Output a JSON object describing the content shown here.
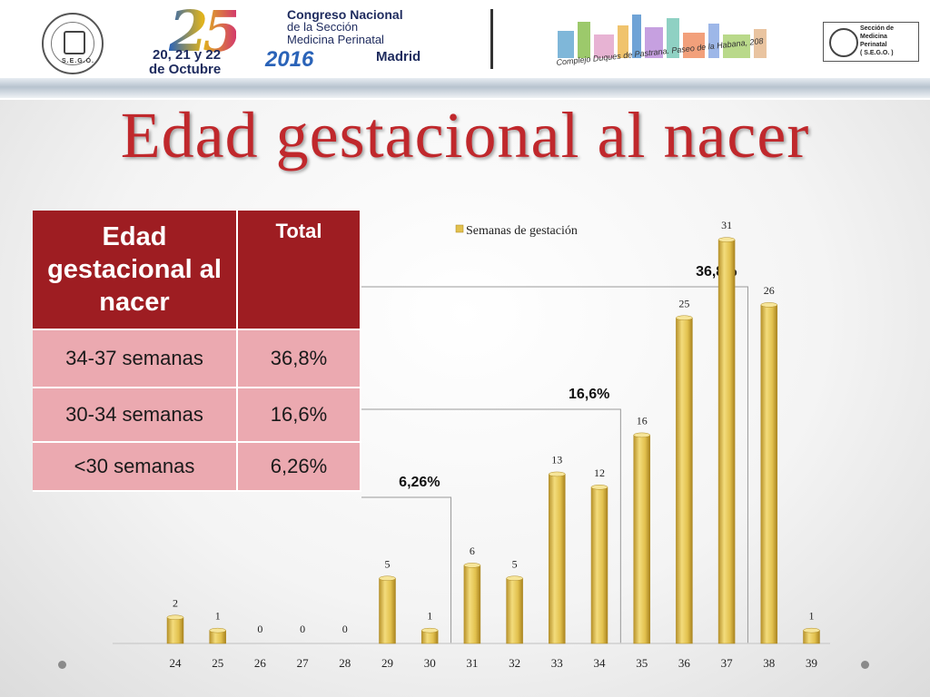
{
  "banner": {
    "number": "25",
    "event_line1": "Congreso Nacional",
    "event_line2": "de la Sección",
    "event_line3": "Medicina Perinatal",
    "dates_line1": "20, 21 y 22",
    "dates_line2": "de Octubre",
    "year": "2016",
    "city": "Madrid",
    "venue": "Complejo Duques de Pastrana. Paseo de la Habana, 208",
    "seal_left": "S.E.G.O.",
    "right_logo_line1": "Sección de",
    "right_logo_line2": "Medicina",
    "right_logo_line3": "Perinatal",
    "right_logo_line4": "( S.E.G.O. )"
  },
  "slide_title": "Edad gestacional al nacer",
  "table": {
    "header_col1": "Edad gestacional al nacer",
    "header_col2": "Total",
    "rows": [
      {
        "label": "34-37 semanas",
        "value": "36,8%"
      },
      {
        "label": "30-34 semanas",
        "value": "16,6%"
      },
      {
        "label": "<30 semanas",
        "value": "6,26%"
      }
    ]
  },
  "chart_data": {
    "type": "bar",
    "categories": [
      "24",
      "25",
      "26",
      "27",
      "28",
      "29",
      "30",
      "31",
      "32",
      "33",
      "34",
      "35",
      "36",
      "37",
      "38",
      "39"
    ],
    "series": [
      {
        "name": "Semanas de gestación",
        "values": [
          2,
          1,
          0,
          0,
          0,
          5,
          1,
          6,
          5,
          13,
          12,
          16,
          25,
          31,
          26,
          1
        ]
      }
    ],
    "ylim": [
      0,
      32
    ],
    "grid": false,
    "legend": "top",
    "bar_color": "#e2c14e",
    "annotations": [
      {
        "text": "6,26%",
        "from_category": "30",
        "to_category": "31"
      },
      {
        "text": "16,6%",
        "from_category": "34",
        "to_category": "35"
      },
      {
        "text": "36,8%",
        "from_category": "37",
        "to_category": "38"
      }
    ]
  },
  "colors": {
    "title": "#c0282c",
    "table_header": "#9e1d22",
    "table_body": "#eba9b0"
  }
}
